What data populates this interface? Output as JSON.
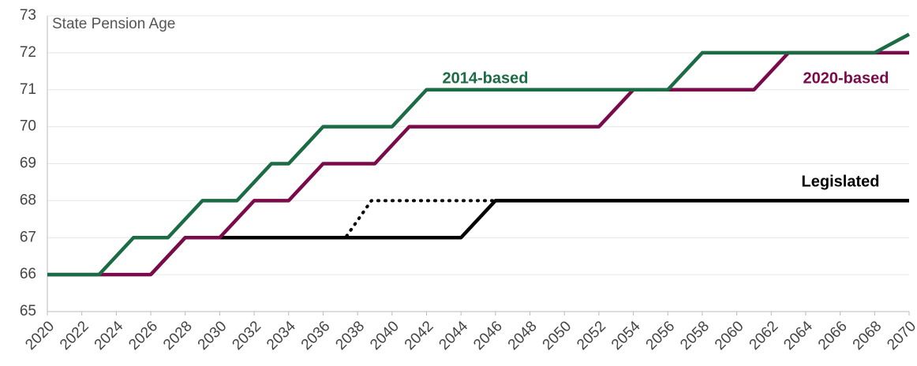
{
  "chart_data": {
    "type": "line",
    "ylabel": "State Pension Age",
    "xlim": [
      2020,
      2070
    ],
    "xticks": [
      2020,
      2022,
      2024,
      2026,
      2028,
      2030,
      2032,
      2034,
      2036,
      2038,
      2040,
      2042,
      2044,
      2046,
      2048,
      2050,
      2052,
      2054,
      2056,
      2058,
      2060,
      2062,
      2064,
      2066,
      2068,
      2070
    ],
    "ylim": [
      65,
      73
    ],
    "yticks": [
      65,
      66,
      67,
      68,
      69,
      70,
      71,
      72,
      73
    ],
    "grid": true,
    "series": [
      {
        "name": "2014-based",
        "color": "#1b6b45",
        "dash": false,
        "x": [
          2020,
          2023,
          2025,
          2027,
          2029,
          2031,
          2033,
          2034,
          2036,
          2040,
          2042,
          2056,
          2058,
          2068,
          2070
        ],
        "values": [
          66,
          66,
          67,
          67,
          68,
          68,
          69,
          69,
          70,
          70,
          71,
          71,
          72,
          72,
          72.5
        ]
      },
      {
        "name": "2020-based",
        "color": "#7a0a4a",
        "dash": false,
        "x": [
          2020,
          2026,
          2028,
          2030,
          2032,
          2034,
          2036,
          2039,
          2041,
          2052,
          2054,
          2061,
          2063,
          2070
        ],
        "values": [
          66,
          66,
          67,
          67,
          68,
          68,
          69,
          69,
          70,
          70,
          71,
          71,
          72,
          72
        ]
      },
      {
        "name": "Legislated",
        "color": "#000000",
        "dash": false,
        "x": [
          2026,
          2028,
          2044,
          2046,
          2070
        ],
        "values": [
          66,
          67,
          67,
          68,
          68
        ]
      },
      {
        "color": "#000000",
        "dash": true,
        "x": [
          2030,
          2037.3,
          2038.8,
          2046
        ],
        "values": [
          67,
          67,
          68,
          68
        ]
      }
    ]
  }
}
